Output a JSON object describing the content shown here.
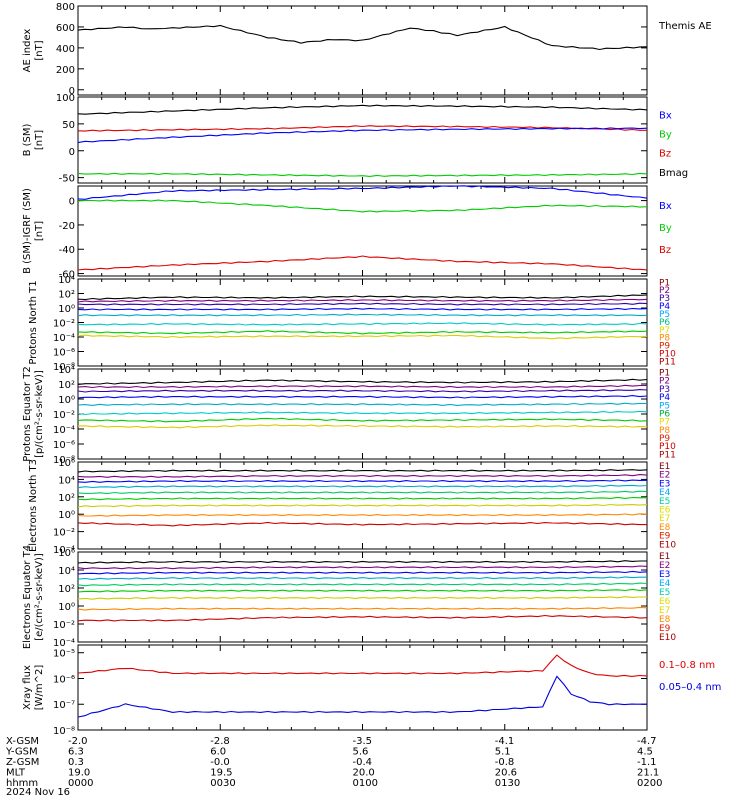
{
  "chart_data": [
    {
      "type": "line",
      "ylabel": "AE index",
      "yunit": "[nT]",
      "ylim": [
        -50,
        800
      ],
      "yticks": [
        "800",
        "600",
        "400",
        "200",
        "0"
      ],
      "yscale": "linear",
      "x": [
        0,
        10,
        15,
        20,
        30,
        40,
        47,
        54,
        60,
        70,
        75,
        80,
        90,
        100,
        110,
        120
      ],
      "series": [
        {
          "name": "Themis AE",
          "color": "#000000",
          "values": [
            570,
            600,
            580,
            590,
            610,
            500,
            450,
            480,
            470,
            590,
            560,
            520,
            600,
            420,
            390,
            410
          ]
        }
      ],
      "legend": [
        {
          "label": "Themis AE",
          "color": "#000000"
        }
      ]
    },
    {
      "type": "line",
      "ylabel": "B (SM)",
      "yunit": "[nT]",
      "ylim": [
        -60,
        100
      ],
      "yticks": [
        "100",
        "50",
        "0",
        "-50"
      ],
      "yscale": "linear",
      "x": [
        0,
        20,
        40,
        60,
        80,
        100,
        120
      ],
      "series": [
        {
          "name": "Bmag",
          "color": "#000000",
          "values": [
            68,
            74,
            80,
            84,
            83,
            81,
            76
          ]
        },
        {
          "name": "Bz",
          "color": "#e00000",
          "values": [
            37,
            39,
            41,
            46,
            45,
            43,
            38
          ]
        },
        {
          "name": "Bx",
          "color": "#0000ff",
          "values": [
            16,
            25,
            33,
            38,
            40,
            41,
            42
          ]
        },
        {
          "name": "By",
          "color": "#00cc00",
          "values": [
            -43,
            -43,
            -45,
            -47,
            -46,
            -45,
            -43
          ]
        }
      ],
      "legend": [
        {
          "label": "Bx",
          "color": "#0000ff"
        },
        {
          "label": "By",
          "color": "#00cc00"
        },
        {
          "label": "Bz",
          "color": "#e00000"
        },
        {
          "label": "Bmag",
          "color": "#000000"
        }
      ]
    },
    {
      "type": "line",
      "ylabel": "B (SM)-IGRF (SM)",
      "yunit": "[nT]",
      "ylim": [
        -62,
        12
      ],
      "yticks": [
        "0",
        "-20",
        "-40",
        "-60"
      ],
      "yscale": "linear",
      "x": [
        0,
        20,
        40,
        60,
        80,
        100,
        120
      ],
      "series": [
        {
          "name": "Bx",
          "color": "#0000ff",
          "values": [
            1,
            8,
            9,
            10,
            12,
            10,
            2
          ]
        },
        {
          "name": "By",
          "color": "#00cc00",
          "values": [
            0,
            0,
            -4,
            -9,
            -8,
            -4,
            -5
          ]
        },
        {
          "name": "Bz",
          "color": "#e00000",
          "values": [
            -57,
            -53,
            -50,
            -46,
            -50,
            -52,
            -57
          ]
        }
      ],
      "legend": [
        {
          "label": "Bx",
          "color": "#0000ff"
        },
        {
          "label": "By",
          "color": "#00cc00"
        },
        {
          "label": "Bz",
          "color": "#e00000"
        }
      ]
    },
    {
      "type": "line",
      "ylabel": "Protons North T1",
      "yunit": "",
      "ylim": [
        -8,
        4
      ],
      "yticks": [
        "10⁴",
        "10²",
        "10⁰",
        "10⁻²",
        "10⁻⁴",
        "10⁻⁶",
        "10⁻⁸"
      ],
      "yscale": "log",
      "x": [
        0,
        20,
        40,
        60,
        80,
        100,
        120
      ],
      "series": [
        {
          "name": "P1",
          "color": "#000000",
          "values": [
            1.2,
            1.5,
            1.4,
            1.6,
            1.5,
            1.4,
            1.8
          ]
        },
        {
          "name": "P2",
          "color": "#800080",
          "values": [
            0.9,
            1.0,
            1.0,
            1.1,
            1.0,
            1.0,
            1.2
          ]
        },
        {
          "name": "P3",
          "color": "#3300aa",
          "values": [
            0.5,
            0.5,
            0.5,
            0.6,
            0.5,
            0.5,
            0.6
          ]
        },
        {
          "name": "P4",
          "color": "#0000ff",
          "values": [
            -0.2,
            -0.2,
            -0.2,
            -0.1,
            -0.2,
            -0.2,
            -0.1
          ]
        },
        {
          "name": "P5",
          "color": "#00aacc",
          "values": [
            -1.0,
            -1.0,
            -1.0,
            -0.9,
            -1.0,
            -1.0,
            -1.0
          ]
        },
        {
          "name": "P6",
          "color": "#00cccc",
          "values": [
            -2.3,
            -2.2,
            -2.3,
            -2.2,
            -2.1,
            -2.3,
            -2.2
          ]
        },
        {
          "name": "P8",
          "color": "#00cc00",
          "values": [
            -3.3,
            -3.5,
            -3.2,
            -3.5,
            -3.3,
            -3.4,
            -3.2
          ]
        },
        {
          "name": "P9",
          "color": "#ddcc00",
          "values": [
            -3.8,
            -4.0,
            -3.9,
            -3.9,
            -3.8,
            -4.2,
            -3.9
          ]
        }
      ],
      "legend": [
        {
          "label": "P1",
          "color": "#800000"
        },
        {
          "label": "P2",
          "color": "#800080"
        },
        {
          "label": "P3",
          "color": "#3300aa"
        },
        {
          "label": "P4",
          "color": "#0000ff"
        },
        {
          "label": "P5",
          "color": "#00aaff"
        },
        {
          "label": "P6",
          "color": "#00bb88"
        },
        {
          "label": "P7",
          "color": "#dddd00"
        },
        {
          "label": "P8",
          "color": "#ff8800"
        },
        {
          "label": "P9",
          "color": "#dd2200"
        },
        {
          "label": "P10",
          "color": "#cc0000"
        },
        {
          "label": "P11",
          "color": "#aa0000"
        }
      ]
    },
    {
      "type": "line",
      "ylabel": "Protons Equator T2",
      "yunit": "[p/(cm²-s-sr-keV)]",
      "ylim": [
        -8,
        4
      ],
      "yticks": [
        "10⁴",
        "10²",
        "10⁰",
        "10⁻²",
        "10⁻⁴",
        "10⁻⁶",
        "10⁻⁸"
      ],
      "yscale": "log",
      "x": [
        0,
        20,
        40,
        60,
        80,
        100,
        120
      ],
      "series": [
        {
          "name": "P1",
          "color": "#000000",
          "values": [
            2.0,
            2.2,
            2.5,
            2.3,
            2.2,
            2.3,
            2.6
          ]
        },
        {
          "name": "P2",
          "color": "#800080",
          "values": [
            1.6,
            1.6,
            1.7,
            1.7,
            1.6,
            1.6,
            1.8
          ]
        },
        {
          "name": "P3",
          "color": "#3300aa",
          "values": [
            1.0,
            1.1,
            1.1,
            1.1,
            1.0,
            1.1,
            1.2
          ]
        },
        {
          "name": "P4",
          "color": "#0000ff",
          "values": [
            0.2,
            0.3,
            0.3,
            0.3,
            0.2,
            0.3,
            0.4
          ]
        },
        {
          "name": "P5",
          "color": "#00aacc",
          "values": [
            -0.8,
            -0.7,
            -0.7,
            -0.7,
            -0.8,
            -0.7,
            -0.6
          ]
        },
        {
          "name": "P6",
          "color": "#00cccc",
          "values": [
            -2.0,
            -1.9,
            -1.8,
            -1.9,
            -1.9,
            -1.8,
            -1.7
          ]
        },
        {
          "name": "P8",
          "color": "#00cc00",
          "values": [
            -2.8,
            -3.0,
            -2.6,
            -2.9,
            -2.8,
            -2.7,
            -2.9
          ]
        },
        {
          "name": "P9",
          "color": "#ddcc00",
          "values": [
            -3.6,
            -3.8,
            -3.5,
            -3.6,
            -3.7,
            -3.6,
            -3.7
          ]
        }
      ],
      "legend": [
        {
          "label": "P1",
          "color": "#800000"
        },
        {
          "label": "P2",
          "color": "#800080"
        },
        {
          "label": "P3",
          "color": "#3300aa"
        },
        {
          "label": "P4",
          "color": "#0000ff"
        },
        {
          "label": "P5",
          "color": "#00aaff"
        },
        {
          "label": "P6",
          "color": "#00aa44"
        },
        {
          "label": "P7",
          "color": "#dddd00"
        },
        {
          "label": "P8",
          "color": "#ff8800"
        },
        {
          "label": "P9",
          "color": "#dd2200"
        },
        {
          "label": "P10",
          "color": "#cc0000"
        },
        {
          "label": "P11",
          "color": "#aa0000"
        }
      ]
    },
    {
      "type": "line",
      "ylabel": "Electrons North T3",
      "yunit": "",
      "ylim": [
        -4,
        6
      ],
      "yticks": [
        "10⁶",
        "10⁴",
        "10²",
        "10⁰",
        "10⁻²",
        "10⁻⁴"
      ],
      "yscale": "log",
      "x": [
        0,
        20,
        40,
        60,
        80,
        100,
        120
      ],
      "series": [
        {
          "name": "E1",
          "color": "#000000",
          "values": [
            4.9,
            5.0,
            5.0,
            5.0,
            5.0,
            5.0,
            5.1
          ]
        },
        {
          "name": "E2",
          "color": "#800080",
          "values": [
            4.3,
            4.3,
            4.4,
            4.4,
            4.4,
            4.4,
            4.5
          ]
        },
        {
          "name": "E3",
          "color": "#0000ff",
          "values": [
            3.7,
            3.8,
            3.8,
            3.8,
            3.8,
            3.8,
            3.9
          ]
        },
        {
          "name": "E4",
          "color": "#00aacc",
          "values": [
            3.1,
            3.2,
            3.2,
            3.2,
            3.2,
            3.2,
            3.3
          ]
        },
        {
          "name": "E5",
          "color": "#00cc66",
          "values": [
            2.4,
            2.5,
            2.5,
            2.5,
            2.5,
            2.5,
            2.6
          ]
        },
        {
          "name": "E6",
          "color": "#00cc00",
          "values": [
            1.7,
            1.8,
            1.8,
            1.8,
            1.8,
            1.8,
            1.9
          ]
        },
        {
          "name": "E7",
          "color": "#cccc00",
          "values": [
            0.9,
            1.0,
            1.0,
            1.0,
            1.0,
            1.0,
            1.1
          ]
        },
        {
          "name": "E8",
          "color": "#ff8800",
          "values": [
            -0.2,
            -0.1,
            -0.1,
            -0.1,
            -0.1,
            -0.1,
            0.0
          ]
        },
        {
          "name": "E9",
          "color": "#cc0000",
          "values": [
            -1.0,
            -1.3,
            -1.0,
            -1.2,
            -1.1,
            -1.0,
            -1.2
          ]
        }
      ],
      "legend": [
        {
          "label": "E1",
          "color": "#800000"
        },
        {
          "label": "E2",
          "color": "#800080"
        },
        {
          "label": "E3",
          "color": "#0000ff"
        },
        {
          "label": "E4",
          "color": "#00aaff"
        },
        {
          "label": "E5",
          "color": "#00ccaa"
        },
        {
          "label": "E6",
          "color": "#dddd00"
        },
        {
          "label": "E7",
          "color": "#dddd00"
        },
        {
          "label": "E8",
          "color": "#ff8800"
        },
        {
          "label": "E9",
          "color": "#dd2200"
        },
        {
          "label": "E10",
          "color": "#aa0000"
        }
      ]
    },
    {
      "type": "line",
      "ylabel": "Electrons Equator T4",
      "yunit": "[e/(cm²-s-sr-keV)]",
      "ylim": [
        -4,
        6
      ],
      "yticks": [
        "10⁶",
        "10⁴",
        "10²",
        "10⁰",
        "10⁻²",
        "10⁻⁴"
      ],
      "yscale": "log",
      "x": [
        0,
        20,
        40,
        60,
        80,
        100,
        120
      ],
      "series": [
        {
          "name": "E1",
          "color": "#000000",
          "values": [
            4.8,
            4.9,
            4.9,
            4.9,
            4.9,
            4.9,
            5.0
          ]
        },
        {
          "name": "E2",
          "color": "#800080",
          "values": [
            4.2,
            4.2,
            4.3,
            4.3,
            4.3,
            4.3,
            4.4
          ]
        },
        {
          "name": "E3",
          "color": "#0000ff",
          "values": [
            3.6,
            3.7,
            3.7,
            3.7,
            3.7,
            3.7,
            3.8
          ]
        },
        {
          "name": "E4",
          "color": "#00aacc",
          "values": [
            3.0,
            3.1,
            3.1,
            3.1,
            3.1,
            3.1,
            3.2
          ]
        },
        {
          "name": "E5",
          "color": "#00cc66",
          "values": [
            2.3,
            2.4,
            2.4,
            2.4,
            2.4,
            2.4,
            2.5
          ]
        },
        {
          "name": "E6",
          "color": "#00cc00",
          "values": [
            1.6,
            1.7,
            1.7,
            1.7,
            1.7,
            1.7,
            1.8
          ]
        },
        {
          "name": "E7",
          "color": "#cccc00",
          "values": [
            0.8,
            0.9,
            0.9,
            0.9,
            0.9,
            0.9,
            1.0
          ]
        },
        {
          "name": "E8",
          "color": "#ff8800",
          "values": [
            -0.4,
            -0.3,
            -0.3,
            -0.3,
            -0.3,
            -0.3,
            -0.2
          ]
        },
        {
          "name": "E9",
          "color": "#cc0000",
          "values": [
            -1.6,
            -1.6,
            -1.3,
            -1.2,
            -1.3,
            -1.1,
            -1.3
          ]
        }
      ],
      "legend": [
        {
          "label": "E1",
          "color": "#800000"
        },
        {
          "label": "E2",
          "color": "#800080"
        },
        {
          "label": "E3",
          "color": "#0000ff"
        },
        {
          "label": "E4",
          "color": "#00aaff"
        },
        {
          "label": "E5",
          "color": "#00ccaa"
        },
        {
          "label": "E6",
          "color": "#dddd00"
        },
        {
          "label": "E7",
          "color": "#dddd00"
        },
        {
          "label": "E8",
          "color": "#ff8800"
        },
        {
          "label": "E9",
          "color": "#dd2200"
        },
        {
          "label": "E10",
          "color": "#aa0000"
        }
      ]
    },
    {
      "type": "line",
      "ylabel": "Xray flux",
      "yunit": "[W/m^2]",
      "ylim": [
        -8,
        -4.7
      ],
      "yticks": [
        "10⁻⁵",
        "10⁻⁶",
        "10⁻⁷",
        "10⁻⁸"
      ],
      "yscale": "log",
      "x": [
        0,
        10,
        20,
        40,
        60,
        80,
        98,
        101,
        104,
        108,
        112,
        120
      ],
      "series": [
        {
          "name": "0.1-0.8 nm",
          "color": "#dd0000",
          "values": [
            -5.8,
            -5.6,
            -5.8,
            -5.8,
            -5.8,
            -5.8,
            -5.7,
            -5.1,
            -5.5,
            -5.8,
            -5.9,
            -5.9
          ]
        },
        {
          "name": "0.05-0.4 nm",
          "color": "#0000dd",
          "values": [
            -7.5,
            -7.0,
            -7.3,
            -7.3,
            -7.3,
            -7.3,
            -7.1,
            -5.9,
            -6.6,
            -6.9,
            -7.0,
            -7.0
          ]
        }
      ],
      "legend": [
        {
          "label": "0.1–0.8 nm",
          "color": "#dd0000"
        },
        {
          "label": "0.05–0.4 nm",
          "color": "#0000dd"
        }
      ]
    }
  ],
  "footer": {
    "rows": [
      {
        "label": "X-GSM",
        "values": [
          "-2.0",
          "-2.8",
          "-3.5",
          "-4.1",
          "-4.7"
        ]
      },
      {
        "label": "Y-GSM",
        "values": [
          "6.3",
          "6.0",
          "5.6",
          "5.1",
          "4.5"
        ]
      },
      {
        "label": "Z-GSM",
        "values": [
          "0.3",
          "-0.0",
          "-0.4",
          "-0.8",
          "-1.1"
        ]
      },
      {
        "label": "MLT",
        "values": [
          "19.0",
          "19.5",
          "20.0",
          "20.6",
          "21.1"
        ]
      },
      {
        "label": "hhmm",
        "values": [
          "0000",
          "0030",
          "0100",
          "0130",
          "0200"
        ]
      }
    ],
    "date": "2024 Nov 16"
  }
}
